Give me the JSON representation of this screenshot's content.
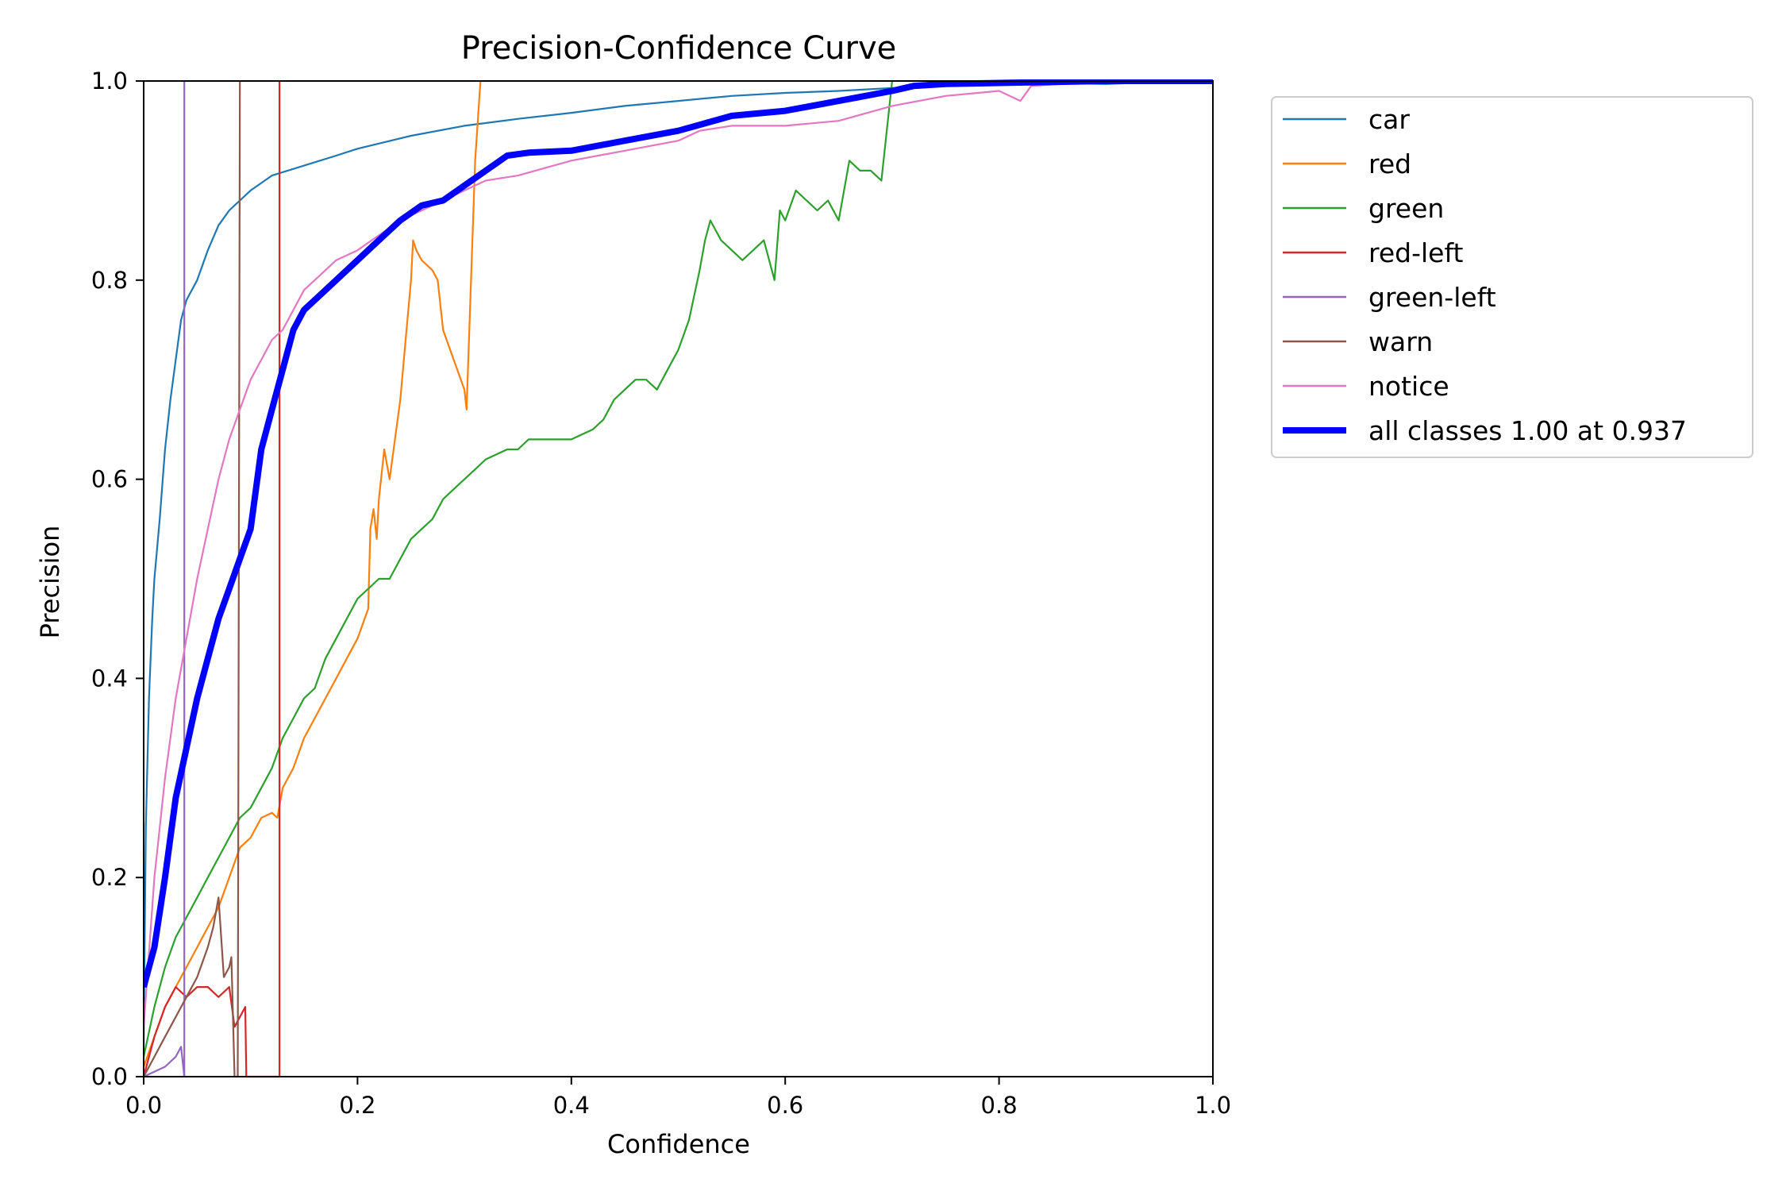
{
  "chart_data": {
    "type": "line",
    "title": "Precision-Confidence Curve",
    "xlabel": "Confidence",
    "ylabel": "Precision",
    "xlim": [
      0,
      1
    ],
    "ylim": [
      0,
      1
    ],
    "xticks": [
      "0.0",
      "0.2",
      "0.4",
      "0.6",
      "0.8",
      "1.0"
    ],
    "yticks": [
      "0.0",
      "0.2",
      "0.4",
      "0.6",
      "0.8",
      "1.0"
    ],
    "grid": false,
    "legend_position": "outside-upper-right",
    "series": [
      {
        "name": "car",
        "color": "#1f77b4",
        "width": "thin",
        "points": [
          [
            0.0,
            0.03
          ],
          [
            0.002,
            0.25
          ],
          [
            0.005,
            0.38
          ],
          [
            0.008,
            0.46
          ],
          [
            0.01,
            0.5
          ],
          [
            0.015,
            0.56
          ],
          [
            0.02,
            0.63
          ],
          [
            0.025,
            0.68
          ],
          [
            0.03,
            0.72
          ],
          [
            0.035,
            0.76
          ],
          [
            0.04,
            0.78
          ],
          [
            0.05,
            0.8
          ],
          [
            0.06,
            0.83
          ],
          [
            0.07,
            0.855
          ],
          [
            0.08,
            0.87
          ],
          [
            0.09,
            0.88
          ],
          [
            0.1,
            0.89
          ],
          [
            0.12,
            0.905
          ],
          [
            0.15,
            0.915
          ],
          [
            0.18,
            0.925
          ],
          [
            0.2,
            0.932
          ],
          [
            0.25,
            0.945
          ],
          [
            0.3,
            0.955
          ],
          [
            0.35,
            0.962
          ],
          [
            0.4,
            0.968
          ],
          [
            0.45,
            0.975
          ],
          [
            0.5,
            0.98
          ],
          [
            0.55,
            0.985
          ],
          [
            0.6,
            0.988
          ],
          [
            0.65,
            0.99
          ],
          [
            0.7,
            0.993
          ],
          [
            0.75,
            0.995
          ],
          [
            0.8,
            0.997
          ],
          [
            0.85,
            0.998
          ],
          [
            0.9,
            0.997
          ],
          [
            0.95,
            0.999
          ],
          [
            1.0,
            1.0
          ]
        ]
      },
      {
        "name": "red",
        "color": "#ff7f0e",
        "width": "thin",
        "points": [
          [
            0.0,
            0.01
          ],
          [
            0.01,
            0.04
          ],
          [
            0.02,
            0.07
          ],
          [
            0.03,
            0.09
          ],
          [
            0.04,
            0.11
          ],
          [
            0.05,
            0.13
          ],
          [
            0.06,
            0.15
          ],
          [
            0.07,
            0.17
          ],
          [
            0.08,
            0.2
          ],
          [
            0.09,
            0.23
          ],
          [
            0.1,
            0.24
          ],
          [
            0.11,
            0.26
          ],
          [
            0.12,
            0.265
          ],
          [
            0.125,
            0.26
          ],
          [
            0.13,
            0.29
          ],
          [
            0.14,
            0.31
          ],
          [
            0.15,
            0.34
          ],
          [
            0.16,
            0.36
          ],
          [
            0.17,
            0.38
          ],
          [
            0.18,
            0.4
          ],
          [
            0.19,
            0.42
          ],
          [
            0.2,
            0.44
          ],
          [
            0.21,
            0.47
          ],
          [
            0.212,
            0.55
          ],
          [
            0.215,
            0.57
          ],
          [
            0.218,
            0.54
          ],
          [
            0.22,
            0.58
          ],
          [
            0.225,
            0.63
          ],
          [
            0.23,
            0.6
          ],
          [
            0.24,
            0.68
          ],
          [
            0.245,
            0.74
          ],
          [
            0.25,
            0.8
          ],
          [
            0.252,
            0.84
          ],
          [
            0.255,
            0.83
          ],
          [
            0.26,
            0.82
          ],
          [
            0.27,
            0.81
          ],
          [
            0.275,
            0.8
          ],
          [
            0.28,
            0.75
          ],
          [
            0.29,
            0.72
          ],
          [
            0.3,
            0.69
          ],
          [
            0.302,
            0.67
          ],
          [
            0.31,
            0.92
          ],
          [
            0.315,
            1.0
          ]
        ]
      },
      {
        "name": "green",
        "color": "#2ca02c",
        "width": "thin",
        "points": [
          [
            0.0,
            0.02
          ],
          [
            0.01,
            0.07
          ],
          [
            0.02,
            0.11
          ],
          [
            0.03,
            0.14
          ],
          [
            0.04,
            0.16
          ],
          [
            0.05,
            0.18
          ],
          [
            0.06,
            0.2
          ],
          [
            0.07,
            0.22
          ],
          [
            0.08,
            0.24
          ],
          [
            0.09,
            0.26
          ],
          [
            0.1,
            0.27
          ],
          [
            0.11,
            0.29
          ],
          [
            0.12,
            0.31
          ],
          [
            0.13,
            0.34
          ],
          [
            0.14,
            0.36
          ],
          [
            0.15,
            0.38
          ],
          [
            0.16,
            0.39
          ],
          [
            0.17,
            0.42
          ],
          [
            0.18,
            0.44
          ],
          [
            0.19,
            0.46
          ],
          [
            0.2,
            0.48
          ],
          [
            0.21,
            0.49
          ],
          [
            0.22,
            0.5
          ],
          [
            0.23,
            0.5
          ],
          [
            0.24,
            0.52
          ],
          [
            0.25,
            0.54
          ],
          [
            0.26,
            0.55
          ],
          [
            0.27,
            0.56
          ],
          [
            0.28,
            0.58
          ],
          [
            0.29,
            0.59
          ],
          [
            0.3,
            0.6
          ],
          [
            0.31,
            0.61
          ],
          [
            0.32,
            0.62
          ],
          [
            0.33,
            0.625
          ],
          [
            0.34,
            0.63
          ],
          [
            0.35,
            0.63
          ],
          [
            0.36,
            0.64
          ],
          [
            0.38,
            0.64
          ],
          [
            0.4,
            0.64
          ],
          [
            0.42,
            0.65
          ],
          [
            0.43,
            0.66
          ],
          [
            0.44,
            0.68
          ],
          [
            0.45,
            0.69
          ],
          [
            0.46,
            0.7
          ],
          [
            0.47,
            0.7
          ],
          [
            0.48,
            0.69
          ],
          [
            0.49,
            0.71
          ],
          [
            0.5,
            0.73
          ],
          [
            0.51,
            0.76
          ],
          [
            0.52,
            0.81
          ],
          [
            0.525,
            0.84
          ],
          [
            0.53,
            0.86
          ],
          [
            0.54,
            0.84
          ],
          [
            0.55,
            0.83
          ],
          [
            0.56,
            0.82
          ],
          [
            0.57,
            0.83
          ],
          [
            0.58,
            0.84
          ],
          [
            0.585,
            0.82
          ],
          [
            0.59,
            0.8
          ],
          [
            0.595,
            0.87
          ],
          [
            0.6,
            0.86
          ],
          [
            0.61,
            0.89
          ],
          [
            0.62,
            0.88
          ],
          [
            0.63,
            0.87
          ],
          [
            0.64,
            0.88
          ],
          [
            0.65,
            0.86
          ],
          [
            0.66,
            0.92
          ],
          [
            0.67,
            0.91
          ],
          [
            0.68,
            0.91
          ],
          [
            0.69,
            0.9
          ],
          [
            0.7,
            1.0
          ]
        ]
      },
      {
        "name": "red-left",
        "color": "#d62728",
        "width": "thin",
        "points": [
          [
            0.0,
            0.0
          ],
          [
            0.01,
            0.04
          ],
          [
            0.02,
            0.07
          ],
          [
            0.03,
            0.09
          ],
          [
            0.04,
            0.08
          ],
          [
            0.05,
            0.09
          ],
          [
            0.06,
            0.09
          ],
          [
            0.07,
            0.08
          ],
          [
            0.08,
            0.09
          ],
          [
            0.085,
            0.05
          ],
          [
            0.09,
            0.06
          ],
          [
            0.095,
            0.07
          ],
          [
            0.096,
            0.0
          ],
          [
            0.127,
            0.0
          ],
          [
            0.127,
            1.0
          ]
        ]
      },
      {
        "name": "green-left",
        "color": "#9467bd",
        "width": "thin",
        "points": [
          [
            0.0,
            0.0
          ],
          [
            0.01,
            0.005
          ],
          [
            0.02,
            0.01
          ],
          [
            0.03,
            0.02
          ],
          [
            0.035,
            0.03
          ],
          [
            0.038,
            0.0
          ],
          [
            0.038,
            1.0
          ]
        ]
      },
      {
        "name": "warn",
        "color": "#8c564b",
        "width": "thin",
        "points": [
          [
            0.0,
            0.0
          ],
          [
            0.01,
            0.02
          ],
          [
            0.02,
            0.04
          ],
          [
            0.03,
            0.06
          ],
          [
            0.04,
            0.08
          ],
          [
            0.05,
            0.1
          ],
          [
            0.06,
            0.13
          ],
          [
            0.065,
            0.15
          ],
          [
            0.07,
            0.18
          ],
          [
            0.075,
            0.1
          ],
          [
            0.08,
            0.11
          ],
          [
            0.082,
            0.12
          ],
          [
            0.085,
            0.0
          ],
          [
            0.088,
            0.0
          ],
          [
            0.09,
            1.0
          ]
        ]
      },
      {
        "name": "notice",
        "color": "#e377c2",
        "width": "thin",
        "points": [
          [
            0.0,
            0.05
          ],
          [
            0.01,
            0.2
          ],
          [
            0.02,
            0.3
          ],
          [
            0.03,
            0.38
          ],
          [
            0.04,
            0.44
          ],
          [
            0.05,
            0.5
          ],
          [
            0.06,
            0.55
          ],
          [
            0.07,
            0.6
          ],
          [
            0.08,
            0.64
          ],
          [
            0.09,
            0.67
          ],
          [
            0.1,
            0.7
          ],
          [
            0.11,
            0.72
          ],
          [
            0.12,
            0.74
          ],
          [
            0.13,
            0.75
          ],
          [
            0.14,
            0.77
          ],
          [
            0.15,
            0.79
          ],
          [
            0.16,
            0.8
          ],
          [
            0.17,
            0.81
          ],
          [
            0.18,
            0.82
          ],
          [
            0.2,
            0.83
          ],
          [
            0.22,
            0.845
          ],
          [
            0.24,
            0.86
          ],
          [
            0.26,
            0.87
          ],
          [
            0.28,
            0.88
          ],
          [
            0.3,
            0.89
          ],
          [
            0.32,
            0.9
          ],
          [
            0.35,
            0.905
          ],
          [
            0.4,
            0.92
          ],
          [
            0.45,
            0.93
          ],
          [
            0.5,
            0.94
          ],
          [
            0.52,
            0.95
          ],
          [
            0.55,
            0.955
          ],
          [
            0.6,
            0.955
          ],
          [
            0.65,
            0.96
          ],
          [
            0.7,
            0.975
          ],
          [
            0.75,
            0.985
          ],
          [
            0.8,
            0.99
          ],
          [
            0.82,
            0.98
          ],
          [
            0.83,
            0.995
          ],
          [
            0.9,
            1.0
          ],
          [
            1.0,
            1.0
          ]
        ]
      },
      {
        "name": "all classes 1.00 at 0.937",
        "color": "#0000ff",
        "width": "thick",
        "points": [
          [
            0.0,
            0.09
          ],
          [
            0.01,
            0.13
          ],
          [
            0.02,
            0.2
          ],
          [
            0.03,
            0.28
          ],
          [
            0.04,
            0.33
          ],
          [
            0.05,
            0.38
          ],
          [
            0.06,
            0.42
          ],
          [
            0.07,
            0.46
          ],
          [
            0.08,
            0.49
          ],
          [
            0.09,
            0.52
          ],
          [
            0.1,
            0.55
          ],
          [
            0.11,
            0.63
          ],
          [
            0.12,
            0.67
          ],
          [
            0.13,
            0.71
          ],
          [
            0.14,
            0.75
          ],
          [
            0.15,
            0.77
          ],
          [
            0.16,
            0.78
          ],
          [
            0.18,
            0.8
          ],
          [
            0.2,
            0.82
          ],
          [
            0.22,
            0.84
          ],
          [
            0.24,
            0.86
          ],
          [
            0.26,
            0.875
          ],
          [
            0.28,
            0.88
          ],
          [
            0.3,
            0.895
          ],
          [
            0.32,
            0.91
          ],
          [
            0.34,
            0.925
          ],
          [
            0.36,
            0.928
          ],
          [
            0.4,
            0.93
          ],
          [
            0.45,
            0.94
          ],
          [
            0.5,
            0.95
          ],
          [
            0.55,
            0.965
          ],
          [
            0.6,
            0.97
          ],
          [
            0.65,
            0.98
          ],
          [
            0.7,
            0.99
          ],
          [
            0.72,
            0.995
          ],
          [
            0.75,
            0.997
          ],
          [
            0.8,
            0.998
          ],
          [
            0.85,
            0.999
          ],
          [
            0.9,
            1.0
          ],
          [
            0.937,
            1.0
          ],
          [
            1.0,
            1.0
          ]
        ]
      }
    ]
  }
}
